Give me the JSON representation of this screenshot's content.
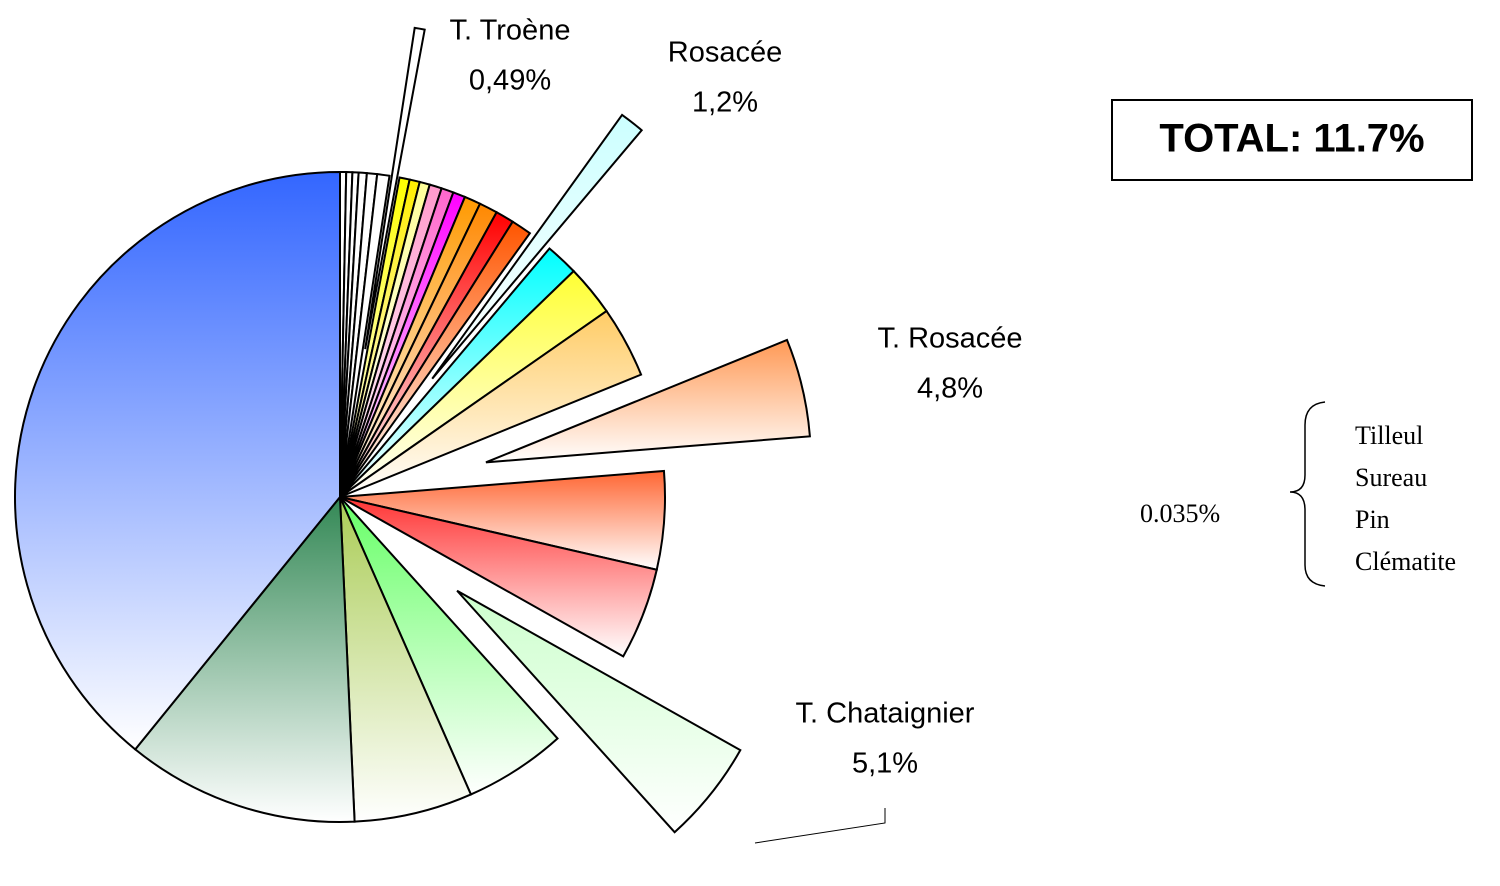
{
  "chart_data": {
    "type": "pie",
    "categories": [
      null,
      null,
      null,
      null,
      null,
      null,
      "T. Troène",
      null,
      null,
      null,
      null,
      null,
      null,
      null,
      null,
      null,
      null,
      "Rosacée",
      null,
      null,
      null,
      "T. Rosacée",
      null,
      null,
      "T. Chataignier",
      null,
      null,
      null,
      null
    ],
    "values": [
      0.3,
      0.3,
      0.3,
      0.4,
      0.5,
      0.6,
      0.49,
      0.5,
      0.5,
      0.5,
      0.6,
      0.6,
      0.6,
      0.8,
      0.9,
      0.9,
      1.0,
      1.2,
      1.6,
      2.5,
      3.5,
      4.8,
      4.8,
      4.5,
      5.1,
      5.0,
      5.8,
      11.4,
      38.6
    ],
    "value_labels": [
      null,
      null,
      null,
      null,
      null,
      null,
      "0,49%",
      null,
      null,
      null,
      null,
      null,
      null,
      null,
      null,
      null,
      null,
      "1,2%",
      null,
      null,
      null,
      "4,8%",
      null,
      null,
      "5,1%",
      null,
      null,
      null,
      null
    ],
    "colors": [
      "#ffffff",
      "#ffffff",
      "#ffffff",
      "#ffffff",
      "#ffffff",
      "#ffffff",
      "#ffffff",
      "#ffff00",
      "#ffee00",
      "#ffff99",
      "#ff99cc",
      "#ff66cc",
      "#ff00ff",
      "#ff9900",
      "#ff8800",
      "#ff0000",
      "#ff5500",
      "#ccffff",
      "#00ffff",
      "#ffff33",
      "#ffcc66",
      "#ff9955",
      "#ff6633",
      "#ff3333",
      "#ccffcc",
      "#66ff66",
      "#aacc55",
      "#338855",
      "#3366ff"
    ],
    "exploded": [
      false,
      false,
      false,
      false,
      false,
      false,
      true,
      false,
      false,
      false,
      false,
      false,
      false,
      false,
      false,
      false,
      false,
      true,
      false,
      false,
      false,
      true,
      false,
      false,
      true,
      false,
      false,
      false,
      false
    ],
    "total_label": "TOTAL: 11.7%",
    "annotation": {
      "value_label": "0.035%",
      "items": [
        "Tilleul",
        "Sureau",
        "Pin",
        "Clématite"
      ]
    }
  }
}
